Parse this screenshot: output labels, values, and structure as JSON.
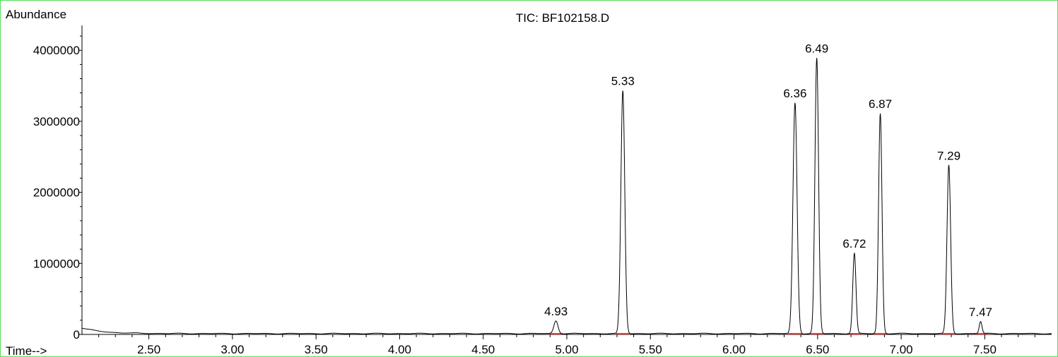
{
  "chart_data": {
    "type": "line",
    "title": "TIC: BF102158.D",
    "ylabel": "Abundance",
    "xlabel": "Time-->",
    "xlim": [
      2.1,
      7.9
    ],
    "ylim": [
      0,
      4350000
    ],
    "x_ticks": [
      "2.50",
      "3.00",
      "3.50",
      "4.00",
      "4.50",
      "5.00",
      "5.50",
      "6.00",
      "6.50",
      "7.00",
      "7.50"
    ],
    "y_ticks": [
      "0",
      "1000000",
      "2000000",
      "3000000",
      "4000000"
    ],
    "grid": false,
    "peaks": [
      {
        "label": "4.93",
        "x": 4.935,
        "y": 180000,
        "width": 0.018
      },
      {
        "label": "5.33",
        "x": 5.335,
        "y": 3420000,
        "width": 0.017
      },
      {
        "label": "6.36",
        "x": 6.365,
        "y": 3250000,
        "width": 0.018
      },
      {
        "label": "6.49",
        "x": 6.495,
        "y": 3880000,
        "width": 0.016
      },
      {
        "label": "6.72",
        "x": 6.72,
        "y": 1130000,
        "width": 0.014
      },
      {
        "label": "6.87",
        "x": 6.875,
        "y": 3100000,
        "width": 0.015
      },
      {
        "label": "7.29",
        "x": 7.285,
        "y": 2370000,
        "width": 0.016
      },
      {
        "label": "7.47",
        "x": 7.475,
        "y": 170000,
        "width": 0.012
      }
    ],
    "baseline_start": 80000,
    "colors": {
      "trace": "#000000",
      "integration_marks": "#ff3333",
      "frame": "#55dd55"
    }
  }
}
